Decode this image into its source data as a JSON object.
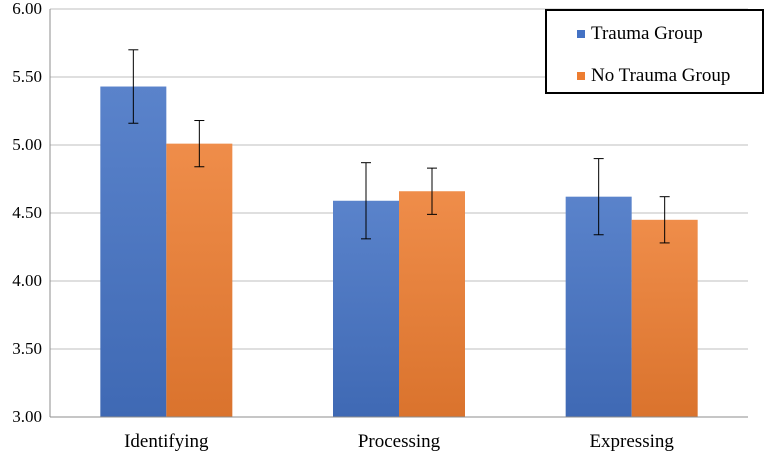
{
  "chart_data": {
    "type": "bar",
    "categories": [
      "Identifying",
      "Processing",
      "Expressing"
    ],
    "series": [
      {
        "name": "Trauma Group",
        "values": [
          5.43,
          4.59,
          4.62
        ],
        "error": [
          0.27,
          0.28,
          0.28
        ],
        "color": "#4472C4"
      },
      {
        "name": "No Trauma Group",
        "values": [
          5.01,
          4.66,
          4.45
        ],
        "error": [
          0.17,
          0.17,
          0.17
        ],
        "color": "#ED7D31"
      }
    ],
    "yticks": [
      "3.00",
      "3.50",
      "4.00",
      "4.50",
      "5.00",
      "5.50",
      "6.00"
    ],
    "ylim": [
      3.0,
      6.0
    ],
    "title": "",
    "xlabel": "",
    "ylabel": "",
    "grid": true,
    "legend_position": "top-right"
  }
}
